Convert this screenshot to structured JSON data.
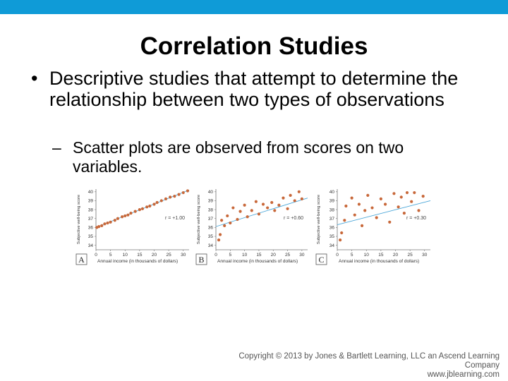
{
  "slide": {
    "title": "Correlation Studies",
    "bullet_marker": "•",
    "sub_marker": "–",
    "bullet": "Descriptive studies that attempt to determine the relationship between two types of observations",
    "sub_bullet": "Scatter plots are observed from scores on two variables.",
    "copyright_line1": "Copyright © 2013 by Jones & Bartlett Learning, LLC an Ascend Learning Company",
    "copyright_line2": "www.jblearning.com"
  },
  "colors": {
    "topbar": "#0f9bd7",
    "points": "#c8683a",
    "fit_line": "#4aa6d8"
  },
  "chart_data": [
    {
      "type": "scatter",
      "panel": "A",
      "xlabel": "Annual income (in thousands of dollars)",
      "ylabel": "Subjective well-being score",
      "xticks": [
        0,
        5,
        10,
        15,
        20,
        25,
        30
      ],
      "yticks": [
        34,
        35,
        36,
        37,
        38,
        39,
        40
      ],
      "xlim": [
        0,
        32
      ],
      "ylim": [
        33.5,
        40.3
      ],
      "annotation": "r = +1.00",
      "fit": [
        [
          0,
          36.0
        ],
        [
          32,
          40.2
        ]
      ],
      "points": [
        [
          0.3,
          36.0
        ],
        [
          1,
          36.1
        ],
        [
          2,
          36.2
        ],
        [
          3,
          36.4
        ],
        [
          4,
          36.5
        ],
        [
          5,
          36.6
        ],
        [
          6.5,
          36.8
        ],
        [
          7.5,
          37.0
        ],
        [
          9,
          37.2
        ],
        [
          10,
          37.3
        ],
        [
          11,
          37.4
        ],
        [
          12,
          37.6
        ],
        [
          13.5,
          37.8
        ],
        [
          15,
          38.0
        ],
        [
          16,
          38.1
        ],
        [
          17.5,
          38.3
        ],
        [
          18.5,
          38.4
        ],
        [
          20,
          38.6
        ],
        [
          21,
          38.8
        ],
        [
          22.5,
          39.0
        ],
        [
          24,
          39.2
        ],
        [
          25.5,
          39.4
        ],
        [
          27,
          39.5
        ],
        [
          28.5,
          39.7
        ],
        [
          30,
          39.9
        ],
        [
          31.5,
          40.1
        ]
      ]
    },
    {
      "type": "scatter",
      "panel": "B",
      "xlabel": "Annual income (in thousands of dollars)",
      "ylabel": "Subjective well-being score",
      "xticks": [
        0,
        5,
        10,
        15,
        20,
        25,
        30
      ],
      "yticks": [
        34,
        35,
        36,
        37,
        38,
        39,
        40
      ],
      "xlim": [
        0,
        32
      ],
      "ylim": [
        33.5,
        40.3
      ],
      "annotation": "r = +0.60",
      "fit": [
        [
          0,
          36.1
        ],
        [
          32,
          39.3
        ]
      ],
      "points": [
        [
          1,
          34.6
        ],
        [
          1.5,
          35.2
        ],
        [
          2,
          36.8
        ],
        [
          3,
          36.2
        ],
        [
          4,
          37.3
        ],
        [
          5,
          36.5
        ],
        [
          6,
          38.2
        ],
        [
          7.5,
          36.9
        ],
        [
          8.5,
          37.8
        ],
        [
          10,
          38.5
        ],
        [
          11,
          37.2
        ],
        [
          12.5,
          37.9
        ],
        [
          14,
          38.9
        ],
        [
          15,
          37.5
        ],
        [
          16.5,
          38.6
        ],
        [
          18,
          38.2
        ],
        [
          19.5,
          38.8
        ],
        [
          20.5,
          37.9
        ],
        [
          22,
          38.5
        ],
        [
          23.5,
          39.3
        ],
        [
          25,
          38.1
        ],
        [
          26,
          39.6
        ],
        [
          27.5,
          39.0
        ],
        [
          29,
          40.0
        ],
        [
          30,
          39.2
        ]
      ]
    },
    {
      "type": "scatter",
      "panel": "C",
      "xlabel": "Annual income (in thousands of dollars)",
      "ylabel": "Subjective well-being score",
      "xticks": [
        0,
        5,
        10,
        15,
        20,
        25,
        30
      ],
      "yticks": [
        34,
        35,
        36,
        37,
        38,
        39,
        40
      ],
      "xlim": [
        0,
        32
      ],
      "ylim": [
        33.5,
        40.3
      ],
      "annotation": "r = +0.30",
      "fit": [
        [
          0,
          36.3
        ],
        [
          32,
          39.0
        ]
      ],
      "points": [
        [
          1,
          34.6
        ],
        [
          1.5,
          35.4
        ],
        [
          2.5,
          36.8
        ],
        [
          3,
          38.4
        ],
        [
          5,
          39.3
        ],
        [
          6,
          37.4
        ],
        [
          7.5,
          38.6
        ],
        [
          8.5,
          36.2
        ],
        [
          9.5,
          37.9
        ],
        [
          10.5,
          39.6
        ],
        [
          12,
          38.2
        ],
        [
          13.5,
          37.1
        ],
        [
          15,
          39.2
        ],
        [
          16.5,
          38.6
        ],
        [
          18,
          36.6
        ],
        [
          19.5,
          39.8
        ],
        [
          21,
          38.3
        ],
        [
          22,
          39.4
        ],
        [
          23,
          37.6
        ],
        [
          24,
          39.9
        ],
        [
          25.5,
          38.9
        ],
        [
          26.5,
          39.9
        ],
        [
          28,
          37.9
        ],
        [
          29.5,
          39.5
        ]
      ]
    }
  ]
}
